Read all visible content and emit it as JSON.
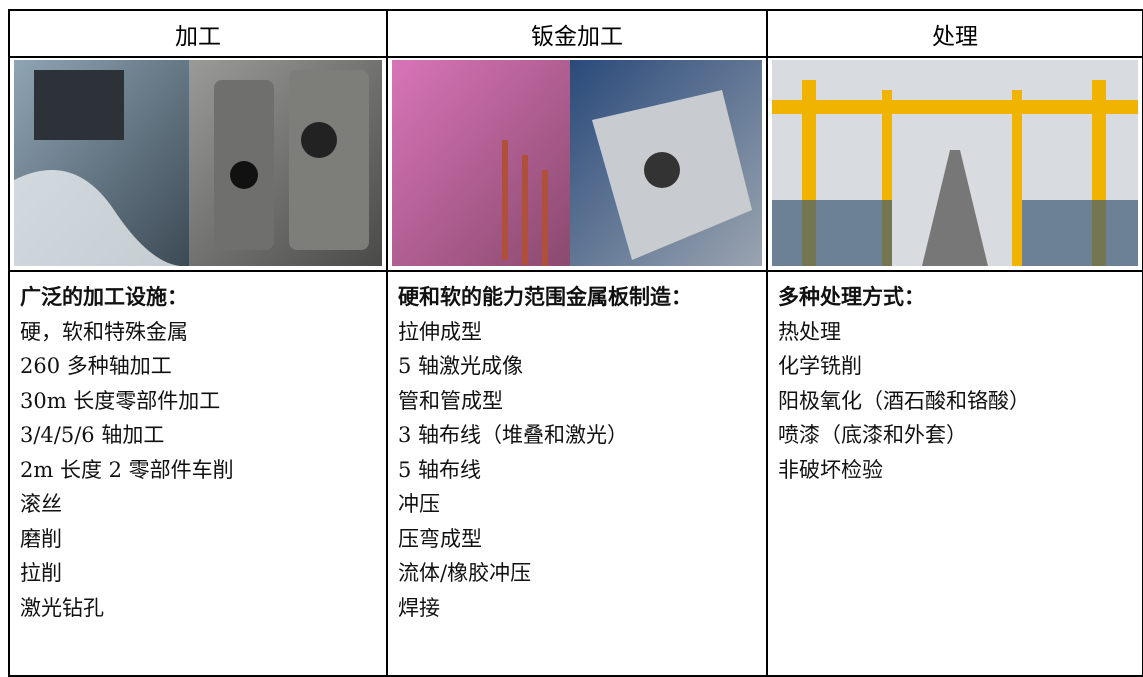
{
  "table": {
    "columns": [
      {
        "header": "加工",
        "heading": "广泛的加工设施：",
        "items": [
          "硬，软和特殊金属",
          "260 多种轴加工",
          "30m 长度零部件加工",
          "3/4/5/6 轴加工",
          "2m 长度 2 零部件车削",
          "滚丝",
          "磨削",
          "拉削",
          "激光钻孔"
        ]
      },
      {
        "header": "钣金加工",
        "heading": "硬和软的能力范围金属板制造：",
        "items": [
          "拉伸成型",
          "5 轴激光成像",
          "管和管成型",
          "3 轴布线（堆叠和激光）",
          "5 轴布线",
          "冲压",
          "压弯成型",
          "流体/橡胶冲压",
          "焊接"
        ]
      },
      {
        "header": "处理",
        "heading": "多种处理方式：",
        "items": [
          "热处理",
          "化学铣削",
          "阳极氧化（酒石酸和铬酸）",
          "喷漆（底漆和外套）",
          "非破坏检验"
        ]
      }
    ]
  }
}
